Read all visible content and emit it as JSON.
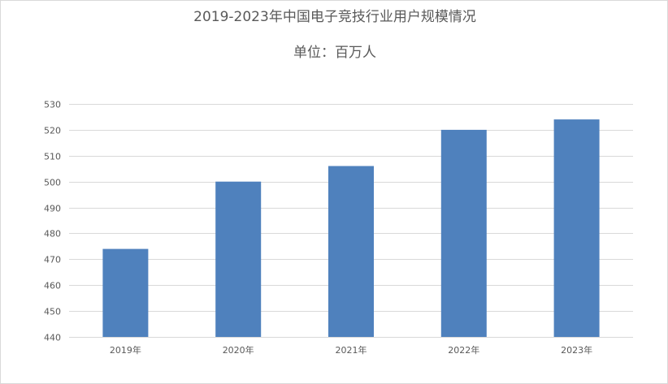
{
  "chart_data": {
    "type": "bar",
    "title": "2019-2023年中国电子竞技行业用户规模情况",
    "subtitle": "单位：百万人",
    "xlabel": "",
    "ylabel": "",
    "categories": [
      "2019年",
      "2020年",
      "2021年",
      "2022年",
      "2023年"
    ],
    "values": [
      474,
      500,
      506,
      520,
      524
    ],
    "ylim": [
      440,
      530
    ],
    "yticks": [
      "440",
      "450",
      "460",
      "470",
      "480",
      "490",
      "500",
      "510",
      "520",
      "530"
    ],
    "grid": true,
    "legend": "none",
    "bar_color": "#4f81bd",
    "grid_color": "#d9d9d9",
    "text_color": "#595959"
  }
}
